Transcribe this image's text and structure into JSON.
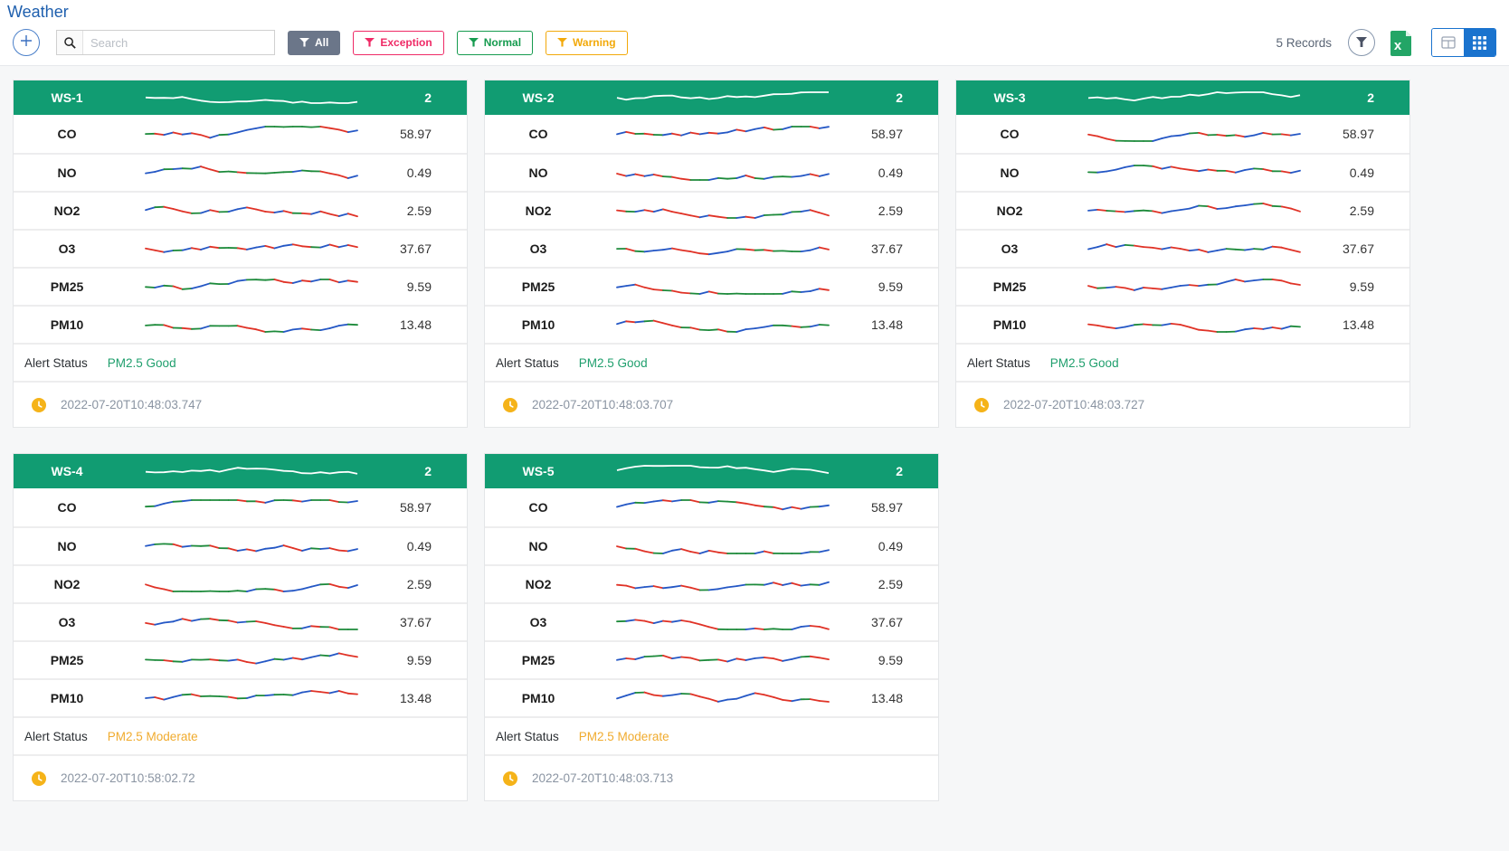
{
  "page": {
    "title": "Weather"
  },
  "toolbar": {
    "search_placeholder": "Search",
    "records_label": "5 Records",
    "filters": [
      {
        "label": "All"
      },
      {
        "label": "Exception"
      },
      {
        "label": "Normal"
      },
      {
        "label": "Warning"
      }
    ]
  },
  "colors": {
    "title_blue": "#1e5fae",
    "header_green": "#119c72",
    "filter_all_bg": "#6b7689",
    "filter_exception": "#ef2a66",
    "filter_normal": "#169b4f",
    "filter_warning": "#f2a90a",
    "toggle_active_blue": "#1a73ce",
    "excel_green": "#23a566",
    "status_good": "#1f9f6d",
    "status_moderate": "#f0ab2e",
    "spark_red": "#e03226",
    "spark_green": "#1c8a3a",
    "spark_blue": "#2457c5",
    "clock_yellow": "#f5b319"
  },
  "cards": [
    {
      "name": "WS-1",
      "count": "2",
      "rows": [
        {
          "label": "CO",
          "value": "58.97"
        },
        {
          "label": "NO",
          "value": "0.49"
        },
        {
          "label": "NO2",
          "value": "2.59"
        },
        {
          "label": "O3",
          "value": "37.67"
        },
        {
          "label": "PM25",
          "value": "9.59"
        },
        {
          "label": "PM10",
          "value": "13.48"
        }
      ],
      "alert_label": "Alert Status",
      "alert_status": "PM2.5 Good",
      "alert_type": "good",
      "timestamp": "2022-07-20T10:48:03.747"
    },
    {
      "name": "WS-2",
      "count": "2",
      "rows": [
        {
          "label": "CO",
          "value": "58.97"
        },
        {
          "label": "NO",
          "value": "0.49"
        },
        {
          "label": "NO2",
          "value": "2.59"
        },
        {
          "label": "O3",
          "value": "37.67"
        },
        {
          "label": "PM25",
          "value": "9.59"
        },
        {
          "label": "PM10",
          "value": "13.48"
        }
      ],
      "alert_label": "Alert Status",
      "alert_status": "PM2.5 Good",
      "alert_type": "good",
      "timestamp": "2022-07-20T10:48:03.707"
    },
    {
      "name": "WS-3",
      "count": "2",
      "rows": [
        {
          "label": "CO",
          "value": "58.97"
        },
        {
          "label": "NO",
          "value": "0.49"
        },
        {
          "label": "NO2",
          "value": "2.59"
        },
        {
          "label": "O3",
          "value": "37.67"
        },
        {
          "label": "PM25",
          "value": "9.59"
        },
        {
          "label": "PM10",
          "value": "13.48"
        }
      ],
      "alert_label": "Alert Status",
      "alert_status": "PM2.5 Good",
      "alert_type": "good",
      "timestamp": "2022-07-20T10:48:03.727"
    },
    {
      "name": "WS-4",
      "count": "2",
      "rows": [
        {
          "label": "CO",
          "value": "58.97"
        },
        {
          "label": "NO",
          "value": "0.49"
        },
        {
          "label": "NO2",
          "value": "2.59"
        },
        {
          "label": "O3",
          "value": "37.67"
        },
        {
          "label": "PM25",
          "value": "9.59"
        },
        {
          "label": "PM10",
          "value": "13.48"
        }
      ],
      "alert_label": "Alert Status",
      "alert_status": "PM2.5 Moderate",
      "alert_type": "moderate",
      "timestamp": "2022-07-20T10:58:02.72"
    },
    {
      "name": "WS-5",
      "count": "2",
      "rows": [
        {
          "label": "CO",
          "value": "58.97"
        },
        {
          "label": "NO",
          "value": "0.49"
        },
        {
          "label": "NO2",
          "value": "2.59"
        },
        {
          "label": "O3",
          "value": "37.67"
        },
        {
          "label": "PM25",
          "value": "9.59"
        },
        {
          "label": "PM10",
          "value": "13.48"
        }
      ],
      "alert_label": "Alert Status",
      "alert_status": "PM2.5 Moderate",
      "alert_type": "moderate",
      "timestamp": "2022-07-20T10:48:03.713"
    }
  ]
}
